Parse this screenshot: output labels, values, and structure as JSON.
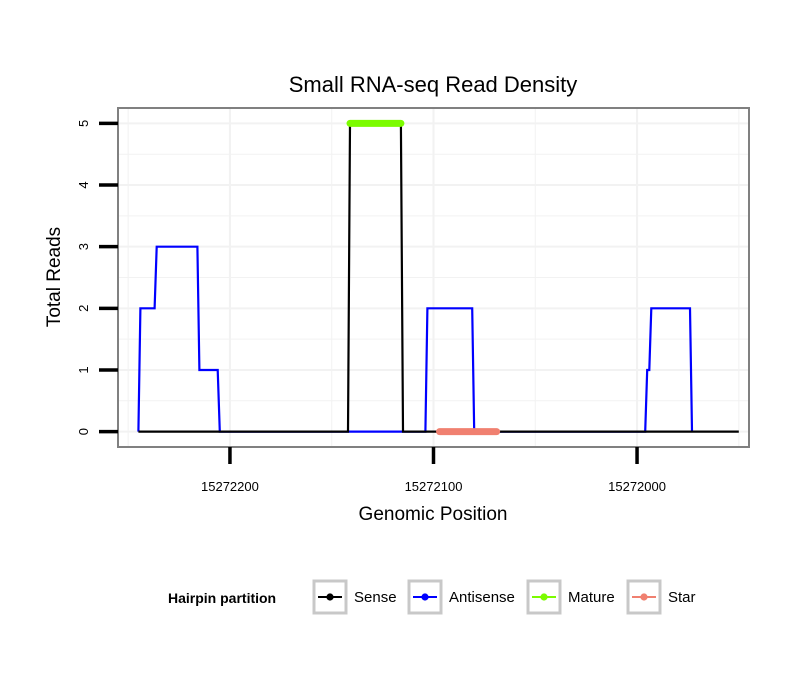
{
  "chart_data": {
    "type": "line",
    "title": "Small RNA-seq Read Density",
    "xlabel": "Genomic Position",
    "ylabel": "Total Reads",
    "xlim": [
      15272255,
      15271945
    ],
    "ylim": [
      -0.25,
      5.25
    ],
    "x_reversed": true,
    "x_ticks": [
      15272200,
      15272100,
      15272000
    ],
    "x_tick_labels": [
      "15272200",
      "15272100",
      "15272000"
    ],
    "y_ticks": [
      0,
      1,
      2,
      3,
      4,
      5
    ],
    "y_tick_labels": [
      "0",
      "1",
      "2",
      "3",
      "4",
      "5"
    ],
    "grid": true,
    "legend": {
      "title": "Hairpin partition",
      "position": "bottom",
      "entries": [
        "Sense",
        "Antisense",
        "Mature",
        "Star"
      ]
    },
    "series": [
      {
        "name": "Sense",
        "color": "#000000",
        "x": [
          15272245,
          15272142,
          15272141,
          15272116,
          15272115,
          15271950
        ],
        "values": [
          0,
          0,
          5,
          5,
          0,
          0
        ]
      },
      {
        "name": "Antisense",
        "color": "#0000ff",
        "x": [
          15272245,
          15272244,
          15272237,
          15272236,
          15272229,
          15272228,
          15272216,
          15272215,
          15272206,
          15272205,
          15272104,
          15272103,
          15272081,
          15272080,
          15271996,
          15271995,
          15271994,
          15271993,
          15271974,
          15271973
        ],
        "values": [
          0,
          2,
          2,
          3,
          3,
          3,
          3,
          1,
          1,
          0,
          0,
          2,
          2,
          0,
          0,
          1,
          1,
          2,
          2,
          0
        ]
      },
      {
        "name": "Mature",
        "color": "#7cfc00",
        "x": [
          15272141,
          15272116
        ],
        "values": [
          5,
          5
        ]
      },
      {
        "name": "Star",
        "color": "#f08070",
        "x": [
          15272097,
          15272069
        ],
        "values": [
          0,
          0
        ]
      }
    ]
  }
}
